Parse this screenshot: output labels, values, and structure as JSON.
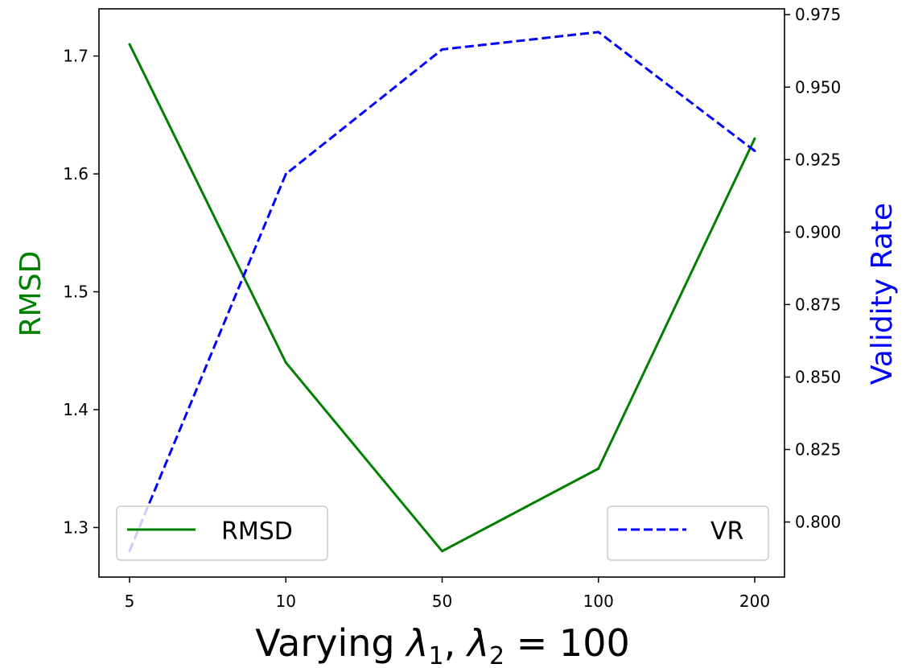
{
  "chart_data": {
    "type": "line",
    "categories": [
      "5",
      "10",
      "50",
      "100",
      "200"
    ],
    "xlabel_main": "Varying ",
    "xlabel_lambda": "λ",
    "xlabel_sub1": "1",
    "xlabel_sep": ", ",
    "xlabel_sub2": "2",
    "xlabel_tail": " = 100",
    "left_axis": {
      "label": "RMSD",
      "color": "#008000",
      "ylim": [
        1.258,
        1.74
      ],
      "ticks": [
        "1.3",
        "1.4",
        "1.5",
        "1.6",
        "1.7"
      ]
    },
    "right_axis": {
      "label": "Validity Rate",
      "color": "#0000ff",
      "ylim": [
        0.781,
        0.977
      ],
      "ticks": [
        "0.800",
        "0.825",
        "0.850",
        "0.875",
        "0.900",
        "0.925",
        "0.950",
        "0.975"
      ]
    },
    "series": [
      {
        "name": "RMSD",
        "axis": "left",
        "color": "#008000",
        "style": "solid",
        "values": [
          1.71,
          1.44,
          1.28,
          1.35,
          1.63
        ]
      },
      {
        "name": "VR",
        "axis": "right",
        "color": "#0000ff",
        "style": "dashed",
        "values": [
          0.79,
          0.92,
          0.963,
          0.969,
          0.928
        ]
      }
    ],
    "legends": [
      {
        "series": "RMSD",
        "placement": "lower-left"
      },
      {
        "series": "VR",
        "placement": "lower-right"
      }
    ],
    "grid": false
  }
}
